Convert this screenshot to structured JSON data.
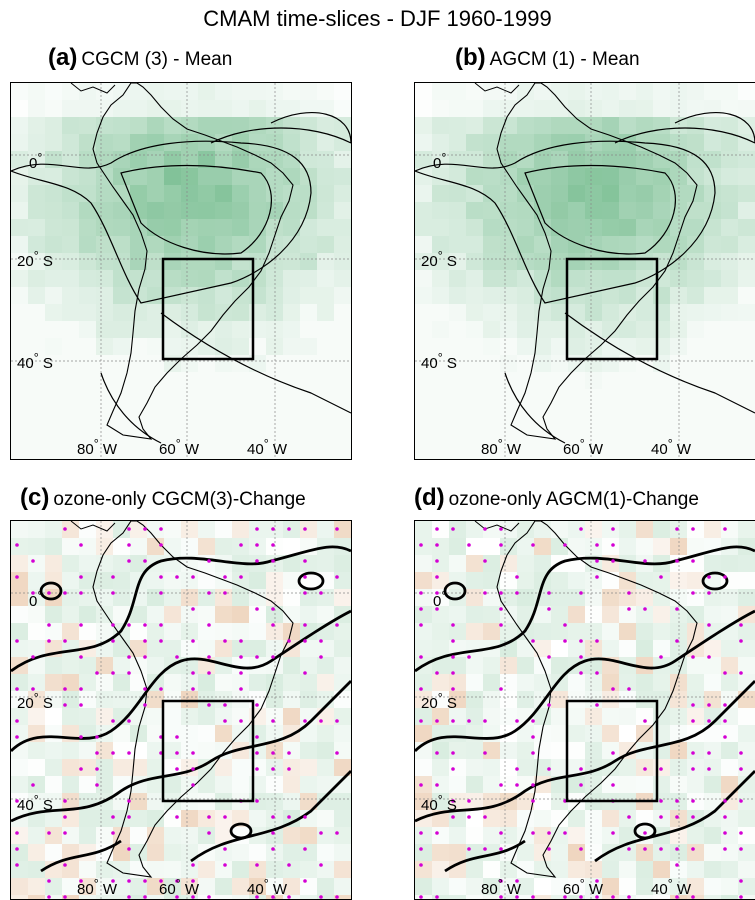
{
  "title": "CMAM time-slices - DJF 1960-1999",
  "panels": [
    {
      "letter": "(a)",
      "name": "CGCM (3) - Mean",
      "kind": "mean"
    },
    {
      "letter": "(b)",
      "name": "AGCM (1) - Mean",
      "kind": "mean"
    },
    {
      "letter": "(c)",
      "name": "ozone-only CGCM(3)-Change",
      "kind": "change"
    },
    {
      "letter": "(d)",
      "name": "ozone-only AGCM(1)-Change",
      "kind": "change"
    }
  ],
  "lat_labels": [
    "0",
    "20",
    "S",
    "40",
    "S"
  ],
  "lon_labels": [
    "80",
    "W",
    "60",
    "W",
    "40",
    "W"
  ],
  "colors": {
    "green": "#2f9a55",
    "orange": "#d08a4a",
    "dots": "#d400d4"
  }
}
